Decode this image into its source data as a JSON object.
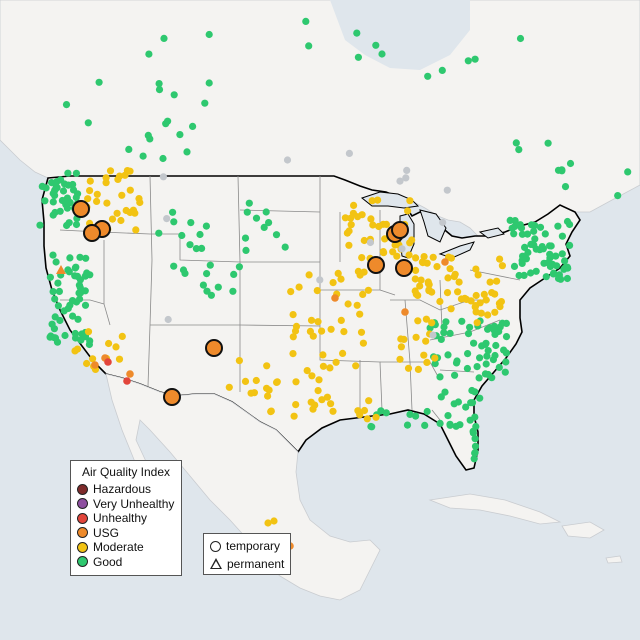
{
  "legend": {
    "title": "Air Quality Index",
    "categories": [
      {
        "label": "Hazardous",
        "color": "#7e2b2b"
      },
      {
        "label": "Very Unhealthy",
        "color": "#8e4fa0"
      },
      {
        "label": "Unhealthy",
        "color": "#e2453b"
      },
      {
        "label": "USG",
        "color": "#ee8a2b"
      },
      {
        "label": "Moderate",
        "color": "#f2c313"
      },
      {
        "label": "Good",
        "color": "#2ec86f"
      }
    ],
    "no_data_color": "#c3c7cc"
  },
  "monitor_types": {
    "temporary": "temporary",
    "permanent": "permanent"
  },
  "colors": {
    "water": "#dfe6ec",
    "land": "#f4f3f1",
    "border": "#000000",
    "state_lines": "#8a8a8a"
  }
}
